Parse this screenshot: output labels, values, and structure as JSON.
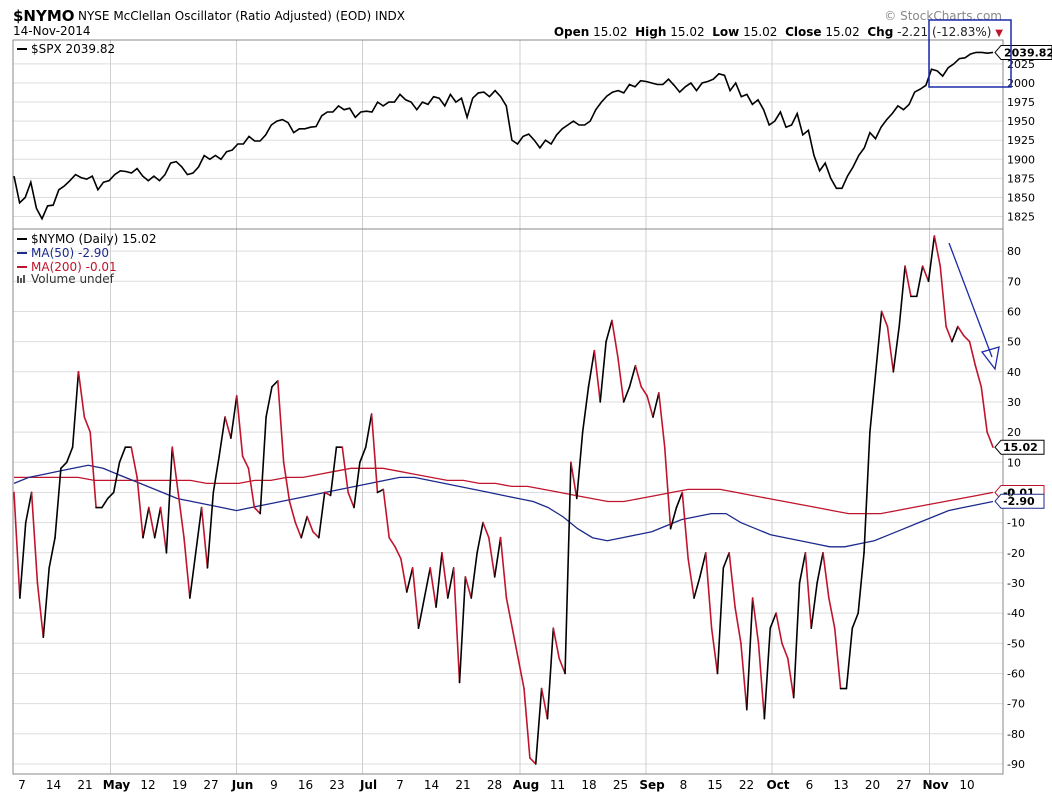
{
  "header": {
    "symbol": "$NYMO",
    "description": "NYSE McClellan Oscillator (Ratio Adjusted) (EOD)",
    "exchange": "INDX",
    "date": "14-Nov-2014",
    "watermark": "© StockCharts.com",
    "open_label": "Open",
    "open_value": "15.02",
    "high_label": "High",
    "high_value": "15.02",
    "low_label": "Low",
    "low_value": "15.02",
    "close_label": "Close",
    "close_value": "15.02",
    "chg_label": "Chg",
    "chg_value": "-2.21",
    "chg_pct": "(-12.83%)",
    "down_triangle": "▼"
  },
  "colors": {
    "price": "#000000",
    "oscillator_up": "#000000",
    "oscillator_down": "#c0142c",
    "ma50": "#1c2a8c",
    "ma200": "#c0142c",
    "annotation": "#1c2aa8",
    "grid": "#dddddd"
  },
  "chart_data": [
    {
      "type": "line",
      "title": "$SPX 2039.82",
      "legend_label": "$SPX 2039.82",
      "last_value_label": "2039.82",
      "ylim": [
        1810,
        2055
      ],
      "yticks": [
        2025,
        2000,
        1975,
        1950,
        1925,
        1900,
        1875,
        1850,
        1825
      ],
      "grid": true,
      "values": [
        1878,
        1843,
        1850,
        1870,
        1836,
        1822,
        1839,
        1840,
        1860,
        1865,
        1872,
        1880,
        1876,
        1874,
        1878,
        1860,
        1870,
        1872,
        1880,
        1885,
        1884,
        1882,
        1888,
        1878,
        1872,
        1878,
        1872,
        1880,
        1895,
        1897,
        1890,
        1880,
        1882,
        1890,
        1905,
        1900,
        1905,
        1900,
        1910,
        1912,
        1920,
        1920,
        1930,
        1924,
        1924,
        1932,
        1945,
        1950,
        1952,
        1948,
        1935,
        1940,
        1940,
        1942,
        1943,
        1957,
        1962,
        1962,
        1970,
        1965,
        1967,
        1955,
        1962,
        1963,
        1962,
        1975,
        1970,
        1975,
        1975,
        1985,
        1978,
        1975,
        1965,
        1975,
        1972,
        1982,
        1980,
        1970,
        1985,
        1975,
        1980,
        1955,
        1980,
        1987,
        1988,
        1982,
        1990,
        1982,
        1970,
        1925,
        1920,
        1930,
        1933,
        1925,
        1915,
        1925,
        1920,
        1932,
        1940,
        1945,
        1950,
        1945,
        1945,
        1950,
        1965,
        1975,
        1983,
        1988,
        1990,
        1987,
        1998,
        1995,
        2003,
        2002,
        2000,
        1998,
        1998,
        2005,
        1997,
        1988,
        1995,
        2000,
        1990,
        2000,
        2002,
        2005,
        2012,
        2010,
        1990,
        2000,
        1982,
        1985,
        1972,
        1978,
        1965,
        1945,
        1950,
        1962,
        1942,
        1945,
        1960,
        1932,
        1938,
        1905,
        1885,
        1895,
        1875,
        1862,
        1862,
        1878,
        1890,
        1905,
        1915,
        1935,
        1927,
        1942,
        1952,
        1960,
        1970,
        1965,
        1972,
        1988,
        1992,
        1997,
        2018,
        2016,
        2009,
        2020,
        2025,
        2032,
        2033,
        2038,
        2040,
        2040,
        2039,
        2040
      ]
    },
    {
      "type": "line",
      "title": "$NYMO (Daily) 15.02",
      "ylim": [
        -93,
        87
      ],
      "yticks": [
        80,
        70,
        60,
        50,
        40,
        30,
        20,
        10,
        0,
        -10,
        -20,
        -30,
        -40,
        -50,
        -60,
        -70,
        -80,
        -90
      ],
      "grid": true,
      "last_value_label": "15.02",
      "ma50_value_label": "-2.90",
      "ma200_value_label": "-0.01",
      "series": [
        {
          "name": "$NYMO (Daily) 15.02",
          "values": [
            0,
            -35,
            -10,
            0,
            -30,
            -48,
            -25,
            -15,
            8,
            10,
            15,
            40,
            25,
            20,
            -5,
            -5,
            -2,
            0,
            10,
            15,
            15,
            5,
            -15,
            -5,
            -15,
            -5,
            -20,
            15,
            0,
            -15,
            -35,
            -20,
            -5,
            -25,
            0,
            12,
            25,
            18,
            32,
            12,
            8,
            -5,
            -7,
            25,
            35,
            37,
            10,
            -3,
            -10,
            -15,
            -8,
            -13,
            -15,
            0,
            -1,
            15,
            15,
            0,
            -5,
            10,
            15,
            26,
            0,
            1,
            -15,
            -18,
            -22,
            -33,
            -25,
            -45,
            -35,
            -25,
            -38,
            -20,
            -35,
            -25,
            -63,
            -28,
            -35,
            -20,
            -10,
            -15,
            -28,
            -15,
            -35,
            -45,
            -55,
            -65,
            -88,
            -90,
            -65,
            -75,
            -45,
            -55,
            -60,
            10,
            -2,
            20,
            35,
            47,
            30,
            50,
            57,
            45,
            30,
            35,
            42,
            35,
            32,
            25,
            33,
            15,
            -12,
            -5,
            0,
            -22,
            -35,
            -28,
            -20,
            -45,
            -60,
            -25,
            -20,
            -38,
            -50,
            -72,
            -35,
            -50,
            -75,
            -45,
            -40,
            -50,
            -55,
            -68,
            -30,
            -20,
            -45,
            -30,
            -20,
            -35,
            -45,
            -65,
            -65,
            -45,
            -40,
            -20,
            20,
            40,
            60,
            55,
            40,
            55,
            75,
            65,
            65,
            75,
            70,
            85,
            75,
            55,
            50,
            55,
            52,
            50,
            42,
            35,
            20,
            15
          ]
        },
        {
          "name": "MA(50) -2.90",
          "values": [
            3,
            5,
            6,
            7,
            8,
            9,
            8,
            6,
            4,
            2,
            0,
            -2,
            -3,
            -4,
            -5,
            -6,
            -5,
            -4,
            -3,
            -2,
            -1,
            0,
            1,
            2,
            3,
            4,
            5,
            5,
            4,
            3,
            2,
            1,
            0,
            -1,
            -2,
            -3,
            -5,
            -8,
            -12,
            -15,
            -16,
            -15,
            -14,
            -13,
            -11,
            -9,
            -8,
            -7,
            -7,
            -10,
            -12,
            -14,
            -15,
            -16,
            -17,
            -18,
            -18,
            -17,
            -16,
            -14,
            -12,
            -10,
            -8,
            -6,
            -5,
            -4,
            -3
          ]
        },
        {
          "name": "MA(200) -0.01",
          "values": [
            5,
            5,
            5,
            5,
            5,
            4,
            4,
            4,
            4,
            4,
            4,
            4,
            3,
            3,
            3,
            4,
            4,
            5,
            5,
            6,
            7,
            8,
            8,
            8,
            7,
            6,
            5,
            4,
            4,
            3,
            3,
            2,
            2,
            1,
            0,
            -1,
            -2,
            -3,
            -3,
            -2,
            -1,
            0,
            1,
            1,
            1,
            0,
            -1,
            -2,
            -3,
            -4,
            -5,
            -6,
            -7,
            -7,
            -7,
            -6,
            -5,
            -4,
            -3,
            -2,
            -1,
            0
          ]
        }
      ],
      "legend": [
        "$NYMO (Daily) 15.02",
        "MA(50) -2.90",
        "MA(200) -0.01",
        "Volume undef"
      ]
    }
  ],
  "x_axis": {
    "labels": [
      {
        "text": "7",
        "bold": false
      },
      {
        "text": "14",
        "bold": false
      },
      {
        "text": "21",
        "bold": false
      },
      {
        "text": "May",
        "bold": true
      },
      {
        "text": "12",
        "bold": false
      },
      {
        "text": "19",
        "bold": false
      },
      {
        "text": "27",
        "bold": false
      },
      {
        "text": "Jun",
        "bold": true
      },
      {
        "text": "9",
        "bold": false
      },
      {
        "text": "16",
        "bold": false
      },
      {
        "text": "23",
        "bold": false
      },
      {
        "text": "Jul",
        "bold": true
      },
      {
        "text": "7",
        "bold": false
      },
      {
        "text": "14",
        "bold": false
      },
      {
        "text": "21",
        "bold": false
      },
      {
        "text": "28",
        "bold": false
      },
      {
        "text": "Aug",
        "bold": true
      },
      {
        "text": "11",
        "bold": false
      },
      {
        "text": "18",
        "bold": false
      },
      {
        "text": "25",
        "bold": false
      },
      {
        "text": "Sep",
        "bold": true
      },
      {
        "text": "8",
        "bold": false
      },
      {
        "text": "15",
        "bold": false
      },
      {
        "text": "22",
        "bold": false
      },
      {
        "text": "Oct",
        "bold": true
      },
      {
        "text": "6",
        "bold": false
      },
      {
        "text": "13",
        "bold": false
      },
      {
        "text": "20",
        "bold": false
      },
      {
        "text": "27",
        "bold": false
      },
      {
        "text": "Nov",
        "bold": true
      },
      {
        "text": "10",
        "bold": false
      }
    ]
  }
}
